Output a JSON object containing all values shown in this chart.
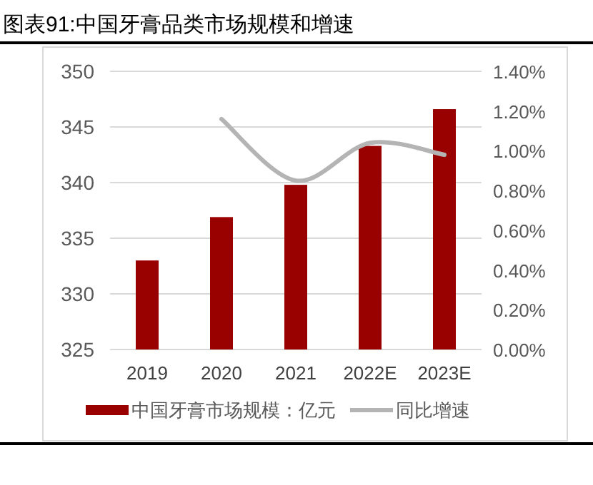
{
  "chart_data": {
    "type": "bar",
    "title": "图表91:中国牙膏品类市场规模和增速",
    "categories": [
      "2019",
      "2020",
      "2021",
      "2022E",
      "2023E"
    ],
    "series": [
      {
        "name": "中国牙膏市场规模：亿元",
        "color": "#990000",
        "values": [
          333.0,
          336.9,
          339.8,
          343.3,
          346.6
        ]
      },
      {
        "name": "同比增速",
        "type": "line",
        "axis": "y2",
        "color": "#b4b4b4",
        "values": [
          null,
          1.16,
          0.85,
          1.04,
          0.98
        ]
      }
    ],
    "ylim": [
      325,
      350
    ],
    "yticks": [
      325,
      330,
      335,
      340,
      345,
      350
    ],
    "y2lim": [
      0,
      1.4
    ],
    "y2ticks": [
      {
        "value": 0,
        "label": "0.00%"
      },
      {
        "value": 0.2,
        "label": "0.20%"
      },
      {
        "value": 0.4,
        "label": "0.40%"
      },
      {
        "value": 0.6,
        "label": "0.60%"
      },
      {
        "value": 0.8,
        "label": "0.80%"
      },
      {
        "value": 1.0,
        "label": "1.00%"
      },
      {
        "value": 1.2,
        "label": "1.20%"
      },
      {
        "value": 1.4,
        "label": "1.40%"
      }
    ],
    "grid": "y",
    "legend": "bottom",
    "marker": "none",
    "line_style": "solid"
  }
}
